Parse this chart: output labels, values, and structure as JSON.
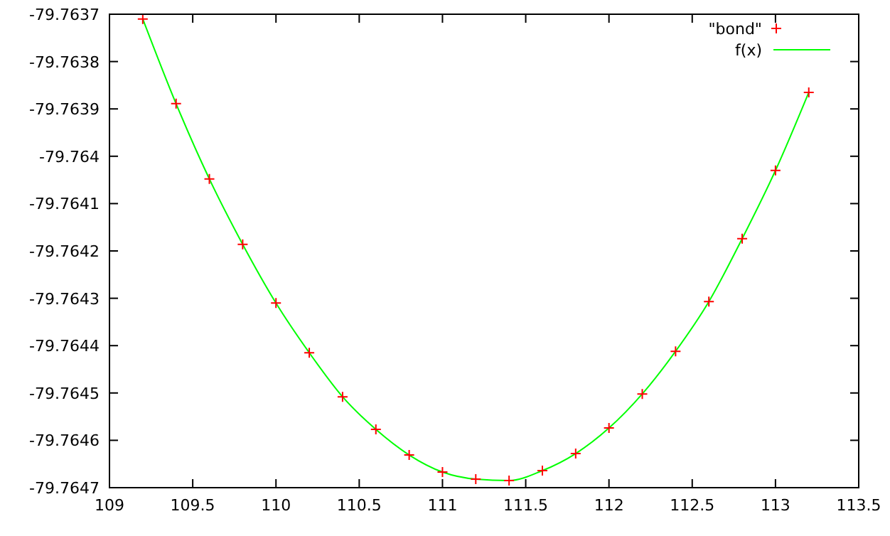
{
  "chart_data": {
    "type": "scatter",
    "xlim": [
      109,
      113.5
    ],
    "xticks": [
      109,
      109.5,
      110,
      110.5,
      111,
      111.5,
      112,
      112.5,
      113,
      113.5
    ],
    "ylim": [
      -79.7647,
      -79.7637
    ],
    "yticks": [
      -79.7647,
      -79.7646,
      -79.7645,
      -79.7644,
      -79.7643,
      -79.7642,
      -79.7641,
      -79.764,
      -79.7639,
      -79.7638,
      -79.7637
    ],
    "legend": "top right",
    "grid": false,
    "series": [
      {
        "name": "\"bond\"",
        "marker": "cross",
        "color": "#ff0000",
        "x": [
          109.2,
          109.4,
          109.6,
          109.8,
          110,
          110.2,
          110.4,
          110.6,
          110.8,
          111,
          111.2,
          111.4,
          111.6,
          111.8,
          112,
          112.2,
          112.4,
          112.6,
          112.8,
          113,
          113.2
        ],
        "values": [
          -79.76371,
          -79.763889,
          -79.764048,
          -79.764186,
          -79.76431,
          -79.764415,
          -79.764508,
          -79.764577,
          -79.764631,
          -79.764667,
          -79.764682,
          -79.764685,
          -79.764664,
          -79.764628,
          -79.764574,
          -79.764502,
          -79.764412,
          -79.764307,
          -79.764174,
          -79.76403,
          -79.763865
        ]
      },
      {
        "name": "f(x)",
        "type": "line",
        "marker": "none",
        "line_style": "solid",
        "color": "#00ff00",
        "x": [
          109.2,
          109.4,
          109.6,
          109.8,
          110,
          110.2,
          110.4,
          110.6,
          110.8,
          111,
          111.2,
          111.4,
          111.6,
          111.8,
          112,
          112.2,
          112.4,
          112.6,
          112.8,
          113,
          113.2
        ],
        "values": [
          -79.76371,
          -79.763889,
          -79.764048,
          -79.764186,
          -79.76431,
          -79.764415,
          -79.764508,
          -79.764577,
          -79.764631,
          -79.764667,
          -79.764682,
          -79.764685,
          -79.764664,
          -79.764628,
          -79.764574,
          -79.764502,
          -79.764412,
          -79.764307,
          -79.764174,
          -79.76403,
          -79.763865
        ]
      }
    ]
  }
}
